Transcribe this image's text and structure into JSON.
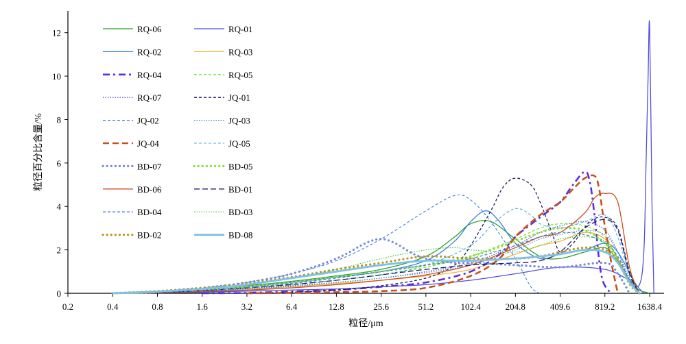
{
  "chart_data": {
    "type": "line",
    "title": "",
    "xlabel": "粒径/μm",
    "ylabel": "粒径百分比含量/%",
    "xscale": "log2",
    "xlim": [
      0.2,
      2048
    ],
    "ylim": [
      0,
      13
    ],
    "xticks": [
      "0.2",
      "0.4",
      "0.8",
      "1.6",
      "3.2",
      "6.4",
      "12.8",
      "25.6",
      "51.2",
      "102.4",
      "204.8",
      "409.6",
      "819.2",
      "1638.4"
    ],
    "xtick_values": [
      0.2,
      0.4,
      0.8,
      1.6,
      3.2,
      6.4,
      12.8,
      25.6,
      51.2,
      102.4,
      204.8,
      409.6,
      819.2,
      1638.4
    ],
    "yticks": [
      "0",
      "2",
      "4",
      "6",
      "8",
      "10",
      "12"
    ],
    "ytick_values": [
      0,
      2,
      4,
      6,
      8,
      10,
      12
    ],
    "legend_placement": "top-left",
    "series": [
      {
        "name": "RQ-06",
        "color": "#2ca02c",
        "style": "solid",
        "width": 1.3,
        "x": [
          0.4,
          0.8,
          1.6,
          3.2,
          6.4,
          12.8,
          25.6,
          51.2,
          80,
          102.4,
          140,
          204.8,
          300,
          409.6,
          600,
          819.2,
          1000,
          1300,
          1638.4
        ],
        "y": [
          0,
          0.1,
          0.2,
          0.35,
          0.55,
          0.8,
          1.1,
          1.7,
          2.6,
          3.2,
          3.3,
          2.5,
          1.7,
          1.6,
          1.9,
          2.1,
          1.5,
          0.3,
          0
        ]
      },
      {
        "name": "RQ-01",
        "color": "#5050e0",
        "style": "solid",
        "width": 1.3,
        "x": [
          0.4,
          0.8,
          1.6,
          3.2,
          6.4,
          12.8,
          25.6,
          51.2,
          102.4,
          204.8,
          409.6,
          819.2,
          1200,
          1400,
          1500,
          1550,
          1600,
          1638.4,
          1700,
          1750
        ],
        "y": [
          0,
          0.02,
          0.05,
          0.1,
          0.15,
          0.2,
          0.3,
          0.4,
          0.6,
          0.9,
          1.2,
          1.1,
          0.6,
          0.4,
          2,
          6,
          10,
          12.3,
          4,
          0
        ]
      },
      {
        "name": "RQ-02",
        "color": "#3a7fd8",
        "style": "solid",
        "width": 1.3,
        "x": [
          0.4,
          0.8,
          1.6,
          3.2,
          6.4,
          12.8,
          25.6,
          51.2,
          80,
          102.4,
          130,
          160,
          204.8,
          300,
          409.6,
          600,
          819.2,
          1000,
          1300,
          1500
        ],
        "y": [
          0,
          0.05,
          0.15,
          0.3,
          0.5,
          0.75,
          1.0,
          1.5,
          2.4,
          3.3,
          3.8,
          3.3,
          2.3,
          1.6,
          1.8,
          2.0,
          2.3,
          1.9,
          0.5,
          0
        ]
      },
      {
        "name": "RQ-03",
        "color": "#f5b43a",
        "style": "solid",
        "width": 1.3,
        "x": [
          0.4,
          0.8,
          1.6,
          3.2,
          6.4,
          12.8,
          25.6,
          51.2,
          102.4,
          204.8,
          300,
          409.6,
          600,
          819.2,
          1000,
          1200,
          1400
        ],
        "y": [
          0,
          0.03,
          0.1,
          0.2,
          0.3,
          0.45,
          0.6,
          0.8,
          1.1,
          1.8,
          2.2,
          2.4,
          2.8,
          2.5,
          1.6,
          0.6,
          0
        ]
      },
      {
        "name": "RQ-04",
        "color": "#5a2ee0",
        "style": "dashdot",
        "width": 2.6,
        "x": [
          1.6,
          3.2,
          6.4,
          12.8,
          25.6,
          51.2,
          102.4,
          160,
          204.8,
          300,
          409.6,
          500,
          600,
          650,
          700,
          750,
          800,
          900
        ],
        "y": [
          0,
          0.02,
          0.08,
          0.15,
          0.3,
          0.5,
          1.0,
          1.8,
          2.6,
          3.5,
          4.2,
          5.0,
          5.6,
          5.1,
          3.5,
          1.5,
          0.5,
          0
        ]
      },
      {
        "name": "RQ-05",
        "color": "#7ae03a",
        "style": "dashed",
        "width": 1.3,
        "x": [
          0.4,
          0.8,
          1.6,
          3.2,
          6.4,
          12.8,
          25.6,
          51.2,
          102.4,
          204.8,
          300,
          409.6,
          600,
          819.2,
          1000,
          1200,
          1400
        ],
        "y": [
          0,
          0.05,
          0.12,
          0.25,
          0.4,
          0.6,
          0.85,
          1.2,
          1.7,
          2.5,
          3.0,
          3.2,
          3.1,
          2.6,
          1.6,
          0.5,
          0
        ]
      },
      {
        "name": "RQ-07",
        "color": "#6060d0",
        "style": "dotted",
        "width": 1.3,
        "x": [
          0.4,
          0.8,
          1.6,
          3.2,
          6.4,
          12.8,
          25.6,
          51.2,
          102.4,
          204.8,
          300,
          409.6,
          600,
          819.2,
          1000,
          1200,
          1400
        ],
        "y": [
          0,
          0.05,
          0.12,
          0.22,
          0.35,
          0.5,
          0.7,
          1.0,
          1.4,
          2.2,
          2.8,
          3.1,
          3.3,
          2.9,
          1.9,
          0.6,
          0
        ]
      },
      {
        "name": "JQ-01",
        "color": "#1a1a60",
        "style": "dashed",
        "width": 1.3,
        "x": [
          3.2,
          6.4,
          12.8,
          25.6,
          51.2,
          80,
          102.4,
          140,
          170,
          204.8,
          260,
          300,
          360,
          409.6,
          500,
          650,
          819.2,
          1000,
          1200,
          1400
        ],
        "y": [
          0,
          0.05,
          0.15,
          0.35,
          0.7,
          1.3,
          2.2,
          3.8,
          4.9,
          5.3,
          5.0,
          4.2,
          2.8,
          1.9,
          2.3,
          3.3,
          3.5,
          3.0,
          1.0,
          0
        ]
      },
      {
        "name": "JQ-02",
        "color": "#3a7fd8",
        "style": "dashed",
        "width": 1.1,
        "x": [
          0.4,
          0.8,
          1.6,
          3.2,
          6.4,
          12.8,
          25.6,
          51.2,
          80,
          102.4,
          140,
          204.8,
          260,
          300
        ],
        "y": [
          0,
          0.1,
          0.25,
          0.5,
          0.9,
          1.5,
          2.5,
          3.8,
          4.5,
          4.3,
          3.3,
          1.6,
          0.3,
          0
        ]
      },
      {
        "name": "JQ-03",
        "color": "#3a7fd8",
        "style": "dotted",
        "width": 1.1,
        "x": [
          0.4,
          0.8,
          1.6,
          3.2,
          6.4,
          12.8,
          25.6,
          51.2,
          102.4,
          204.8,
          300,
          409.6,
          600,
          819.2,
          1000,
          1200,
          1400
        ],
        "y": [
          0,
          0.04,
          0.1,
          0.2,
          0.32,
          0.5,
          0.7,
          0.95,
          1.3,
          2.0,
          2.5,
          2.7,
          2.9,
          2.7,
          1.9,
          0.7,
          0
        ]
      },
      {
        "name": "JQ-04",
        "color": "#c8501a",
        "style": "dashed",
        "width": 2.6,
        "x": [
          3.2,
          6.4,
          12.8,
          25.6,
          51.2,
          102.4,
          160,
          204.8,
          300,
          409.6,
          500,
          600,
          700,
          750,
          800,
          900,
          1000
        ],
        "y": [
          0,
          0.02,
          0.05,
          0.1,
          0.25,
          0.8,
          1.6,
          2.6,
          3.6,
          4.2,
          4.8,
          5.3,
          5.4,
          4.8,
          3.5,
          1.5,
          0
        ]
      },
      {
        "name": "JQ-05",
        "color": "#4aa8e0",
        "style": "dashed",
        "width": 1.1,
        "x": [
          0.4,
          0.8,
          1.6,
          3.2,
          6.4,
          12.8,
          25.6,
          51.2,
          102.4,
          150,
          204.8,
          260,
          300,
          409.6,
          600,
          819.2,
          1000,
          1200,
          1400
        ],
        "y": [
          0,
          0.05,
          0.12,
          0.25,
          0.4,
          0.6,
          0.85,
          1.3,
          2.2,
          3.3,
          3.9,
          3.6,
          3.2,
          3.0,
          3.3,
          3.6,
          2.6,
          0.8,
          0
        ]
      },
      {
        "name": "BD-07",
        "color": "#7a8ad8",
        "style": "dots",
        "width": 3.2,
        "x": [
          0.4,
          0.8,
          1.6,
          3.2,
          6.4,
          12.8,
          20,
          25.6,
          32,
          40,
          51.2,
          80,
          102.4,
          204.8,
          409.6,
          819.2,
          1000,
          1200
        ],
        "y": [
          0,
          0.1,
          0.25,
          0.5,
          0.9,
          1.6,
          2.3,
          2.5,
          2.3,
          1.9,
          1.6,
          1.4,
          1.4,
          1.3,
          1.2,
          1.4,
          0.9,
          0
        ]
      },
      {
        "name": "BD-05",
        "color": "#8ae03a",
        "style": "dots",
        "width": 3.2,
        "x": [
          0.4,
          0.8,
          1.6,
          3.2,
          6.4,
          12.8,
          25.6,
          51.2,
          102.4,
          204.8,
          300,
          409.6,
          600,
          819.2,
          1000,
          1200,
          1400
        ],
        "y": [
          0,
          0.05,
          0.15,
          0.3,
          0.5,
          0.75,
          1.0,
          1.3,
          1.7,
          2.4,
          2.8,
          3.0,
          2.9,
          2.3,
          1.5,
          0.4,
          0
        ]
      },
      {
        "name": "BD-06",
        "color": "#c8501a",
        "style": "solid",
        "width": 1.3,
        "x": [
          0.4,
          0.8,
          1.6,
          3.2,
          6.4,
          12.8,
          25.6,
          51.2,
          102.4,
          204.8,
          300,
          409.6,
          600,
          700,
          819.2,
          1000,
          1200,
          1400
        ],
        "y": [
          0,
          0.03,
          0.08,
          0.15,
          0.25,
          0.4,
          0.6,
          0.85,
          1.3,
          2.1,
          2.6,
          2.8,
          3.7,
          4.4,
          4.6,
          4.2,
          1.2,
          0
        ]
      },
      {
        "name": "BD-01",
        "color": "#1a1a70",
        "style": "longdash",
        "width": 1.3,
        "x": [
          0.4,
          0.8,
          1.6,
          3.2,
          6.4,
          12.8,
          25.6,
          51.2,
          102.4,
          204.8,
          300,
          409.6,
          600,
          819.2,
          1000,
          1200,
          1400
        ],
        "y": [
          0,
          0.05,
          0.12,
          0.25,
          0.4,
          0.6,
          0.85,
          1.1,
          1.3,
          1.4,
          1.5,
          1.9,
          3.0,
          3.4,
          2.9,
          0.9,
          0
        ]
      },
      {
        "name": "BD-04",
        "color": "#3a7fd8",
        "style": "dashed",
        "width": 1.3,
        "x": [
          0.4,
          0.8,
          1.6,
          3.2,
          6.4,
          12.8,
          25.6,
          51.2,
          102.4,
          204.8,
          300,
          409.6,
          600,
          819.2,
          1000,
          1200,
          1400
        ],
        "y": [
          0,
          0.05,
          0.12,
          0.25,
          0.45,
          0.7,
          1.0,
          1.3,
          1.6,
          2.2,
          2.6,
          2.8,
          2.7,
          2.3,
          1.7,
          0.6,
          0
        ]
      },
      {
        "name": "BD-03",
        "color": "#3ac83a",
        "style": "dotted",
        "width": 1.2,
        "x": [
          0.4,
          0.8,
          1.6,
          3.2,
          6.4,
          12.8,
          25.6,
          51.2,
          80,
          102.4,
          204.8,
          300,
          409.6,
          600,
          819.2,
          1000,
          1200,
          1400
        ],
        "y": [
          0,
          0.08,
          0.2,
          0.4,
          0.7,
          1.1,
          1.6,
          2.0,
          2.1,
          2.0,
          1.9,
          2.2,
          2.5,
          2.6,
          2.4,
          1.6,
          0.5,
          0
        ]
      },
      {
        "name": "BD-02",
        "color": "#b89620",
        "style": "dots",
        "width": 3.2,
        "x": [
          0.4,
          0.8,
          1.6,
          3.2,
          6.4,
          12.8,
          25.6,
          51.2,
          102.4,
          204.8,
          300,
          409.6,
          600,
          819.2,
          1000,
          1200,
          1400
        ],
        "y": [
          0,
          0.1,
          0.25,
          0.45,
          0.75,
          1.1,
          1.4,
          1.7,
          1.6,
          1.6,
          1.7,
          1.9,
          2.1,
          2.0,
          1.5,
          0.5,
          0
        ]
      },
      {
        "name": "BD-08",
        "color": "#7ec0e8",
        "style": "solid",
        "width": 2.8,
        "x": [
          0.4,
          0.8,
          1.6,
          3.2,
          6.4,
          12.8,
          25.6,
          51.2,
          102.4,
          204.8,
          300,
          409.6,
          600,
          819.2,
          1000,
          1200,
          1400
        ],
        "y": [
          0,
          0.08,
          0.2,
          0.4,
          0.7,
          1.0,
          1.3,
          1.5,
          1.5,
          1.6,
          1.7,
          1.8,
          2.0,
          1.9,
          1.4,
          0.5,
          0
        ]
      }
    ]
  }
}
